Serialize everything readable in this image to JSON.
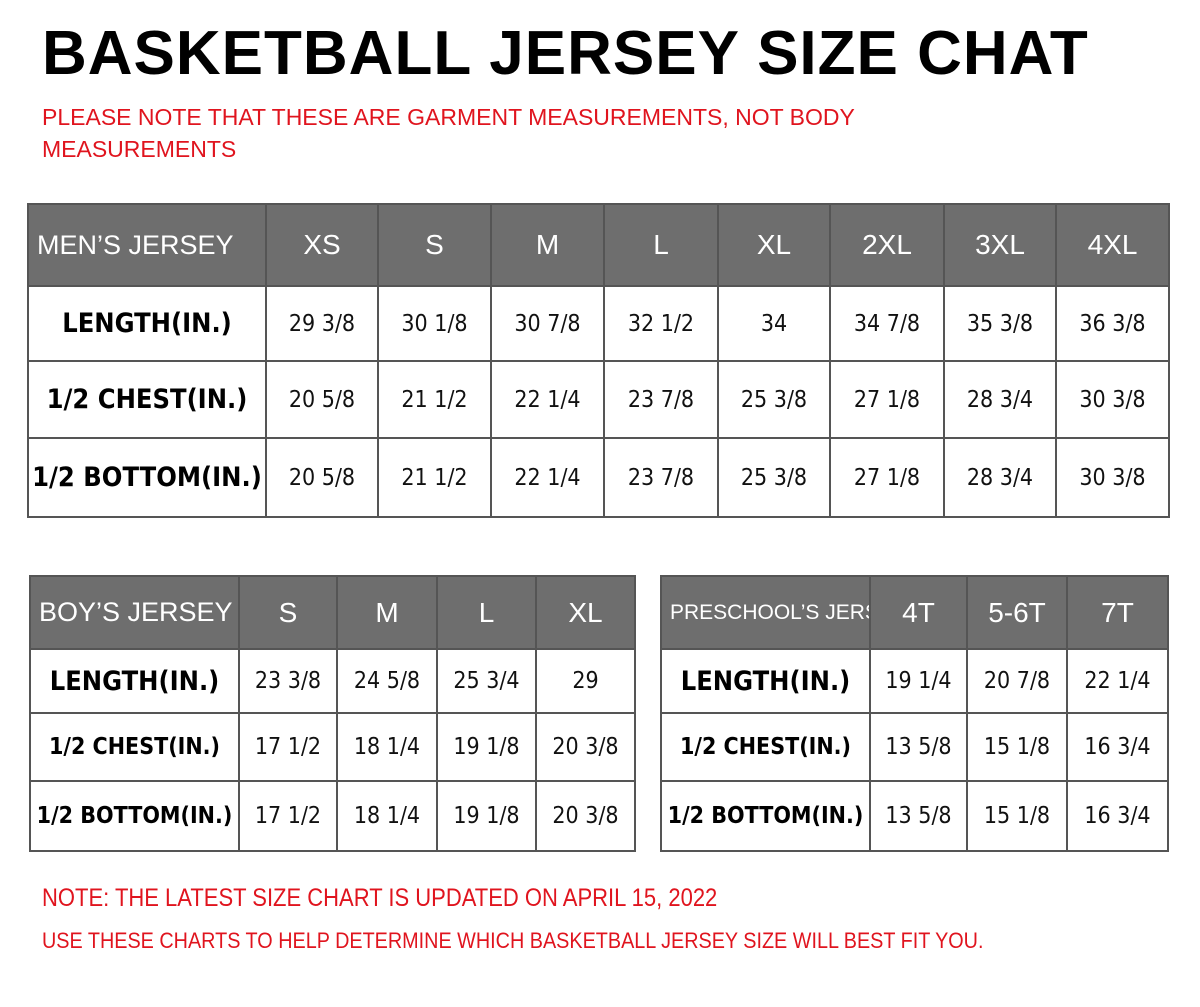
{
  "title": "BASKETBALL JERSEY SIZE CHAT",
  "notes_top": [
    "PLEASE NOTE THAT THESE ARE GARMENT MEASUREMENTS, NOT BODY",
    "MEASUREMENTS"
  ],
  "colors": {
    "header_bg": "#6e6e6e",
    "note_red": "#e0141e"
  },
  "mens": {
    "header": "MEN’S JERSEY",
    "sizes": [
      "XS",
      "S",
      "M",
      "L",
      "XL",
      "2XL",
      "3XL",
      "4XL"
    ],
    "rows": [
      {
        "label": "LENGTH(IN.)",
        "values": [
          "29 3/8",
          "30 1/8",
          "30 7/8",
          "32 1/2",
          "34",
          "34 7/8",
          "35 3/8",
          "36 3/8"
        ]
      },
      {
        "label": "1/2 CHEST(IN.)",
        "values": [
          "20 5/8",
          "21 1/2",
          "22 1/4",
          "23 7/8",
          "25 3/8",
          "27 1/8",
          "28 3/4",
          "30 3/8"
        ]
      },
      {
        "label": "1/2 BOTTOM(IN.)",
        "values": [
          "20 5/8",
          "21 1/2",
          "22 1/4",
          "23 7/8",
          "25 3/8",
          "27 1/8",
          "28 3/4",
          "30 3/8"
        ]
      }
    ]
  },
  "boys": {
    "header": "BOY’S JERSEY",
    "sizes": [
      "S",
      "M",
      "L",
      "XL"
    ],
    "rows": [
      {
        "label": "LENGTH(IN.)",
        "values": [
          "23 3/8",
          "24 5/8",
          "25 3/4",
          "29"
        ]
      },
      {
        "label": "1/2 CHEST(IN.)",
        "values": [
          "17 1/2",
          "18 1/4",
          "19 1/8",
          "20 3/8"
        ]
      },
      {
        "label": "1/2 BOTTOM(IN.)",
        "values": [
          "17 1/2",
          "18 1/4",
          "19 1/8",
          "20 3/8"
        ]
      }
    ]
  },
  "preschool": {
    "header": "PRESCHOOL’S JERSEY",
    "sizes": [
      "4T",
      "5-6T",
      "7T"
    ],
    "rows": [
      {
        "label": "LENGTH(IN.)",
        "values": [
          "19 1/4",
          "20 7/8",
          "22 1/4"
        ]
      },
      {
        "label": "1/2 CHEST(IN.)",
        "values": [
          "13 5/8",
          "15 1/8",
          "16 3/4"
        ]
      },
      {
        "label": "1/2 BOTTOM(IN.)",
        "values": [
          "13 5/8",
          "15 1/8",
          "16 3/4"
        ]
      }
    ]
  },
  "notes_bottom": [
    "NOTE: THE LATEST SIZE CHART IS UPDATED ON APRIL 15, 2022",
    "USE THESE CHARTS TO HELP DETERMINE WHICH  BASKETBALL JERSEY  SIZE WILL BEST FIT YOU."
  ]
}
